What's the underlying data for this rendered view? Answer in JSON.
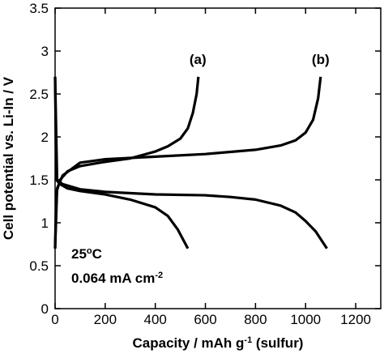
{
  "chart_data": {
    "type": "line",
    "xlabel": [
      "Capacity / mAh g",
      "-1",
      " (sulfur)"
    ],
    "ylabel": "Cell potential vs. Li-In / V",
    "xlim": [
      0,
      1300
    ],
    "xticks": [
      0,
      200,
      400,
      600,
      800,
      1000,
      1200
    ],
    "ylim": [
      0,
      3.5
    ],
    "yticks": [
      0,
      0.5,
      1,
      1.5,
      2,
      2.5,
      3,
      3.5
    ],
    "series": [
      {
        "color": "#000000",
        "x": [
          0,
          5,
          20,
          50,
          100,
          200,
          300,
          400,
          450,
          490,
          530
        ],
        "values": [
          2.7,
          1.5,
          1.45,
          1.4,
          1.37,
          1.33,
          1.27,
          1.18,
          1.08,
          0.92,
          0.7
        ]
      },
      {
        "color": "#000000",
        "x": [
          0,
          8,
          30,
          100,
          200,
          400,
          600,
          700,
          800,
          900,
          960,
          1000,
          1040,
          1085
        ],
        "values": [
          2.7,
          1.5,
          1.45,
          1.39,
          1.36,
          1.33,
          1.32,
          1.3,
          1.27,
          1.2,
          1.12,
          1.02,
          0.9,
          0.7
        ]
      },
      {
        "color": "#000000",
        "x": [
          0,
          5,
          20,
          50,
          100,
          200,
          300,
          400,
          450,
          500,
          530,
          550,
          565,
          572
        ],
        "values": [
          0.7,
          1.35,
          1.5,
          1.6,
          1.66,
          1.71,
          1.75,
          1.83,
          1.89,
          1.98,
          2.1,
          2.28,
          2.5,
          2.7
        ]
      },
      {
        "color": "#000000",
        "x": [
          0,
          8,
          30,
          100,
          200,
          400,
          600,
          800,
          900,
          960,
          1000,
          1030,
          1050,
          1060
        ],
        "values": [
          0.7,
          1.4,
          1.55,
          1.7,
          1.74,
          1.77,
          1.8,
          1.85,
          1.9,
          1.96,
          2.05,
          2.2,
          2.45,
          2.7
        ]
      }
    ],
    "annotations": [
      {
        "text": "(a)",
        "x": 570,
        "y": 2.85
      },
      {
        "text": "(b)",
        "x": 1060,
        "y": 2.85
      }
    ],
    "conditions": [
      [
        "25",
        "o",
        "C"
      ],
      [
        "0.064 mA cm",
        "-2"
      ]
    ]
  }
}
